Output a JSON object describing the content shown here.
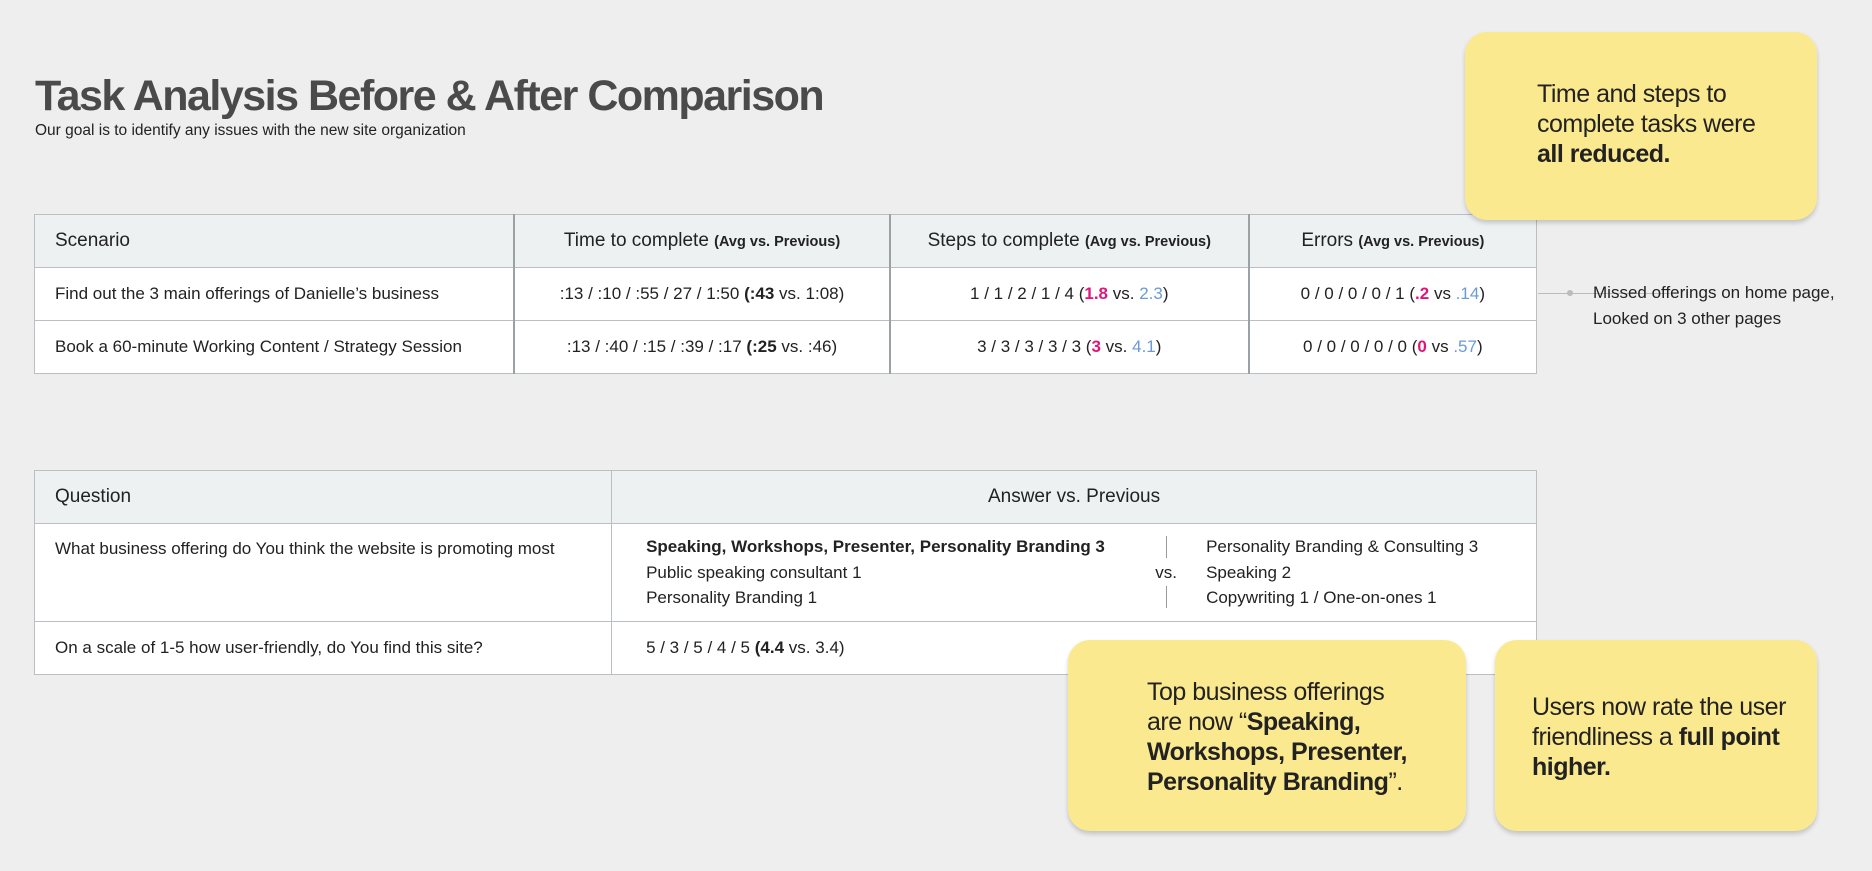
{
  "header": {
    "title": "Task Analysis Before & After Comparison",
    "subtitle": "Our goal is to identify any issues with the new site organization"
  },
  "scenario_table": {
    "headers": {
      "scenario": "Scenario",
      "time": "Time to complete",
      "steps": "Steps to complete",
      "errors": "Errors",
      "sub": "(Avg vs. Previous)"
    },
    "rows": [
      {
        "scenario": "Find out the 3 main offerings of Danielle’s business",
        "time_values": ":13 / :10 / :55 / 27 / 1:50",
        "time_avg": ":43",
        "time_prev": "1:08",
        "steps_values": "1 / 1 / 2 / 1 / 4",
        "steps_avg": "1.8",
        "steps_prev": "2.3",
        "errors_values": "0 / 0 / 0 / 0 / 1",
        "errors_avg": ".2",
        "errors_prev": ".14"
      },
      {
        "scenario": "Book a 60-minute Working Content / Strategy Session",
        "time_values": ":13 / :40 / :15 / :39 / :17",
        "time_avg": ":25",
        "time_prev": ":46",
        "steps_values": "3 / 3 / 3 / 3 / 3",
        "steps_avg": "3",
        "steps_prev": "4.1",
        "errors_values": "0 / 0 / 0 / 0 / 0",
        "errors_avg": "0",
        "errors_prev": ".57"
      }
    ],
    "vs": "vs.",
    "vs_short": "vs",
    "callout": [
      "Missed offerings on home page,",
      "Looked on 3 other pages"
    ]
  },
  "question_table": {
    "headers": {
      "question": "Question",
      "answer": "Answer vs. Previous"
    },
    "q1": {
      "question": "What business offering do You think the website is promoting most",
      "current": [
        "Speaking, Workshops, Presenter, Personality Branding 3",
        "Public speaking consultant 1",
        "Personality Branding 1"
      ],
      "vs": "vs.",
      "previous": [
        "Personality Branding & Consulting 3",
        "Speaking 2",
        "Copywriting 1 / One-on-ones 1"
      ]
    },
    "q2": {
      "question": "On a scale of 1-5 how user-friendly, do You find this site?",
      "values": "5 / 3 / 5 / 4 / 5",
      "avg": "4.4",
      "prev": "3.4"
    }
  },
  "notes": {
    "note1": {
      "l1": "Time and steps to",
      "l2": "complete tasks were",
      "bold": "all reduced."
    },
    "note2": {
      "l1": "Top business offerings",
      "l2_pre": "are now “",
      "b1": "Speaking,",
      "b2": "Workshops, Presenter,",
      "b3": "Personality Branding",
      "end": "”."
    },
    "note3": {
      "l1": "Users now rate the user",
      "l2_pre": "friendliness a ",
      "b1": "full point",
      "b2": "higher."
    }
  }
}
